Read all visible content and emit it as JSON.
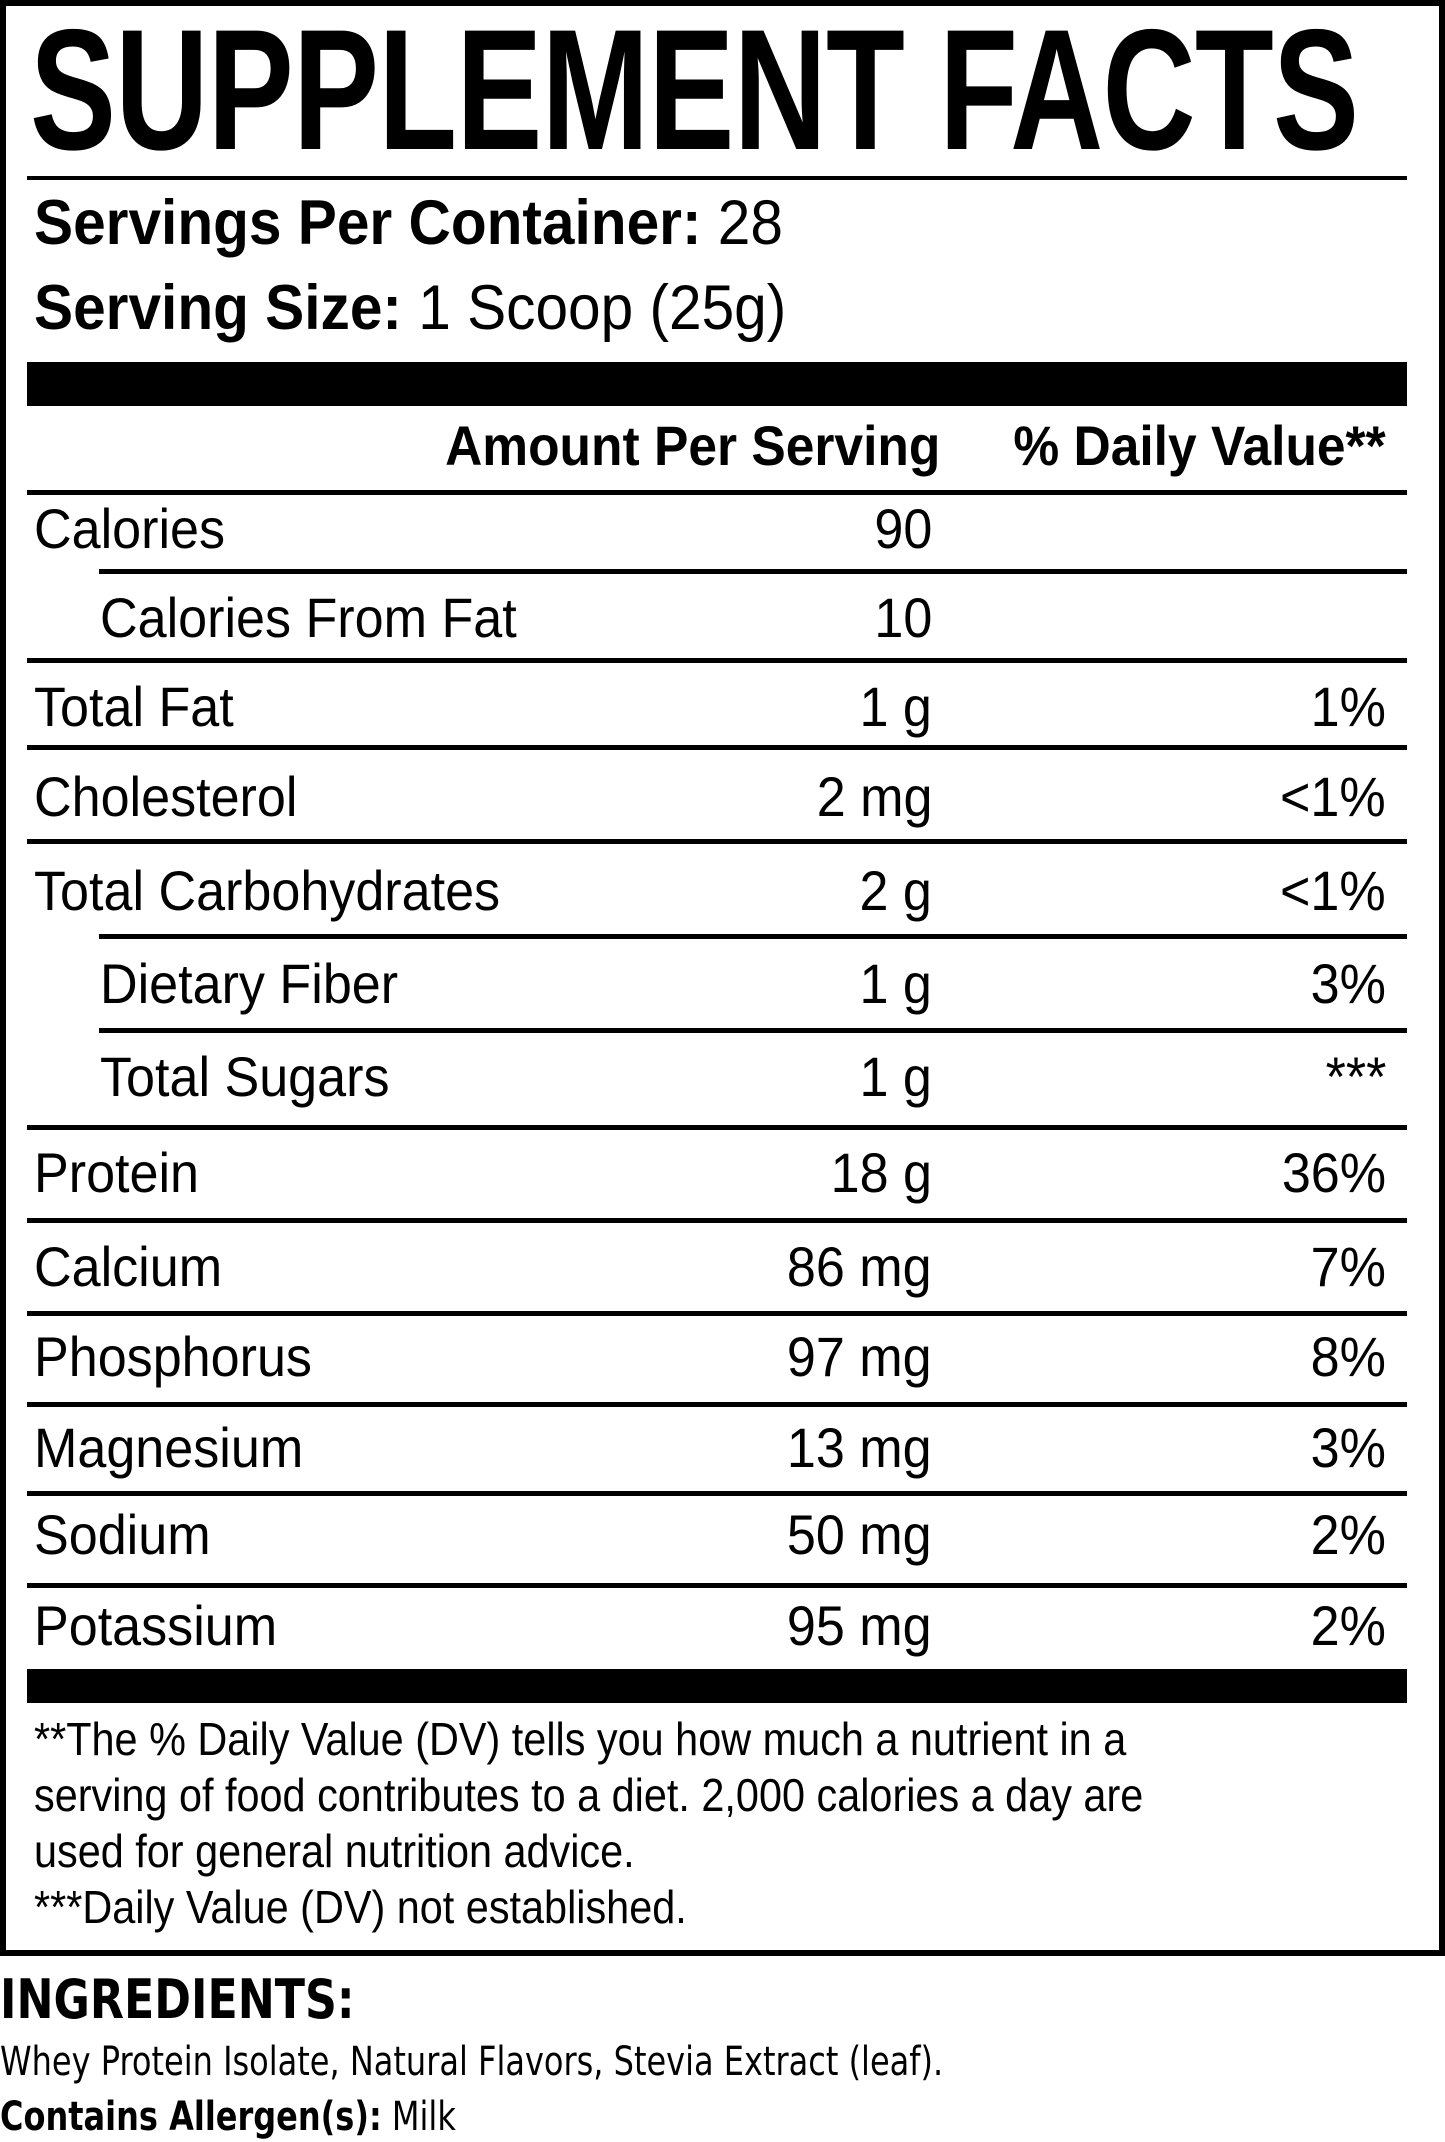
{
  "title": "SUPPLEMENT FACTS",
  "servings": {
    "per_container_label": "Servings Per Container:",
    "per_container_value": "28",
    "size_label": "Serving Size:",
    "size_value": "1 Scoop (25g)"
  },
  "header": {
    "amount": "Amount Per Serving",
    "daily_value": "% Daily Value**"
  },
  "rows": [
    {
      "name": "Calories",
      "amount": "90",
      "dv": "",
      "indent": false
    },
    {
      "name": "Calories From Fat",
      "amount": "10",
      "dv": "",
      "indent": true
    },
    {
      "name": "Total Fat",
      "amount": "1 g",
      "dv": "1%",
      "indent": false
    },
    {
      "name": "Cholesterol",
      "amount": "2 mg",
      "dv": "<1%",
      "indent": false
    },
    {
      "name": "Total Carbohydrates",
      "amount": "2 g",
      "dv": "<1%",
      "indent": false
    },
    {
      "name": "Dietary Fiber",
      "amount": "1 g",
      "dv": "3%",
      "indent": true
    },
    {
      "name": "Total Sugars",
      "amount": "1 g",
      "dv": "***",
      "indent": true
    },
    {
      "name": "Protein",
      "amount": "18 g",
      "dv": "36%",
      "indent": false
    },
    {
      "name": "Calcium",
      "amount": "86 mg",
      "dv": "7%",
      "indent": false
    },
    {
      "name": "Phosphorus",
      "amount": "97 mg",
      "dv": "8%",
      "indent": false
    },
    {
      "name": "Magnesium",
      "amount": "13 mg",
      "dv": "3%",
      "indent": false
    },
    {
      "name": "Sodium",
      "amount": "50 mg",
      "dv": "2%",
      "indent": false
    },
    {
      "name": "Potassium",
      "amount": "95 mg",
      "dv": "2%",
      "indent": false
    }
  ],
  "footnotes": [
    "**The % Daily Value (DV) tells you how much a nutrient in a",
    "serving of food contributes to a diet. 2,000 calories a day are",
    "used for general nutrition advice.",
    "***Daily Value (DV) not established."
  ],
  "ingredients": {
    "heading": "INGREDIENTS:",
    "text": "Whey Protein Isolate, Natural Flavors, Stevia Extract (leaf).",
    "allergen_label": "Contains Allergen(s):",
    "allergen_value": "Milk"
  }
}
